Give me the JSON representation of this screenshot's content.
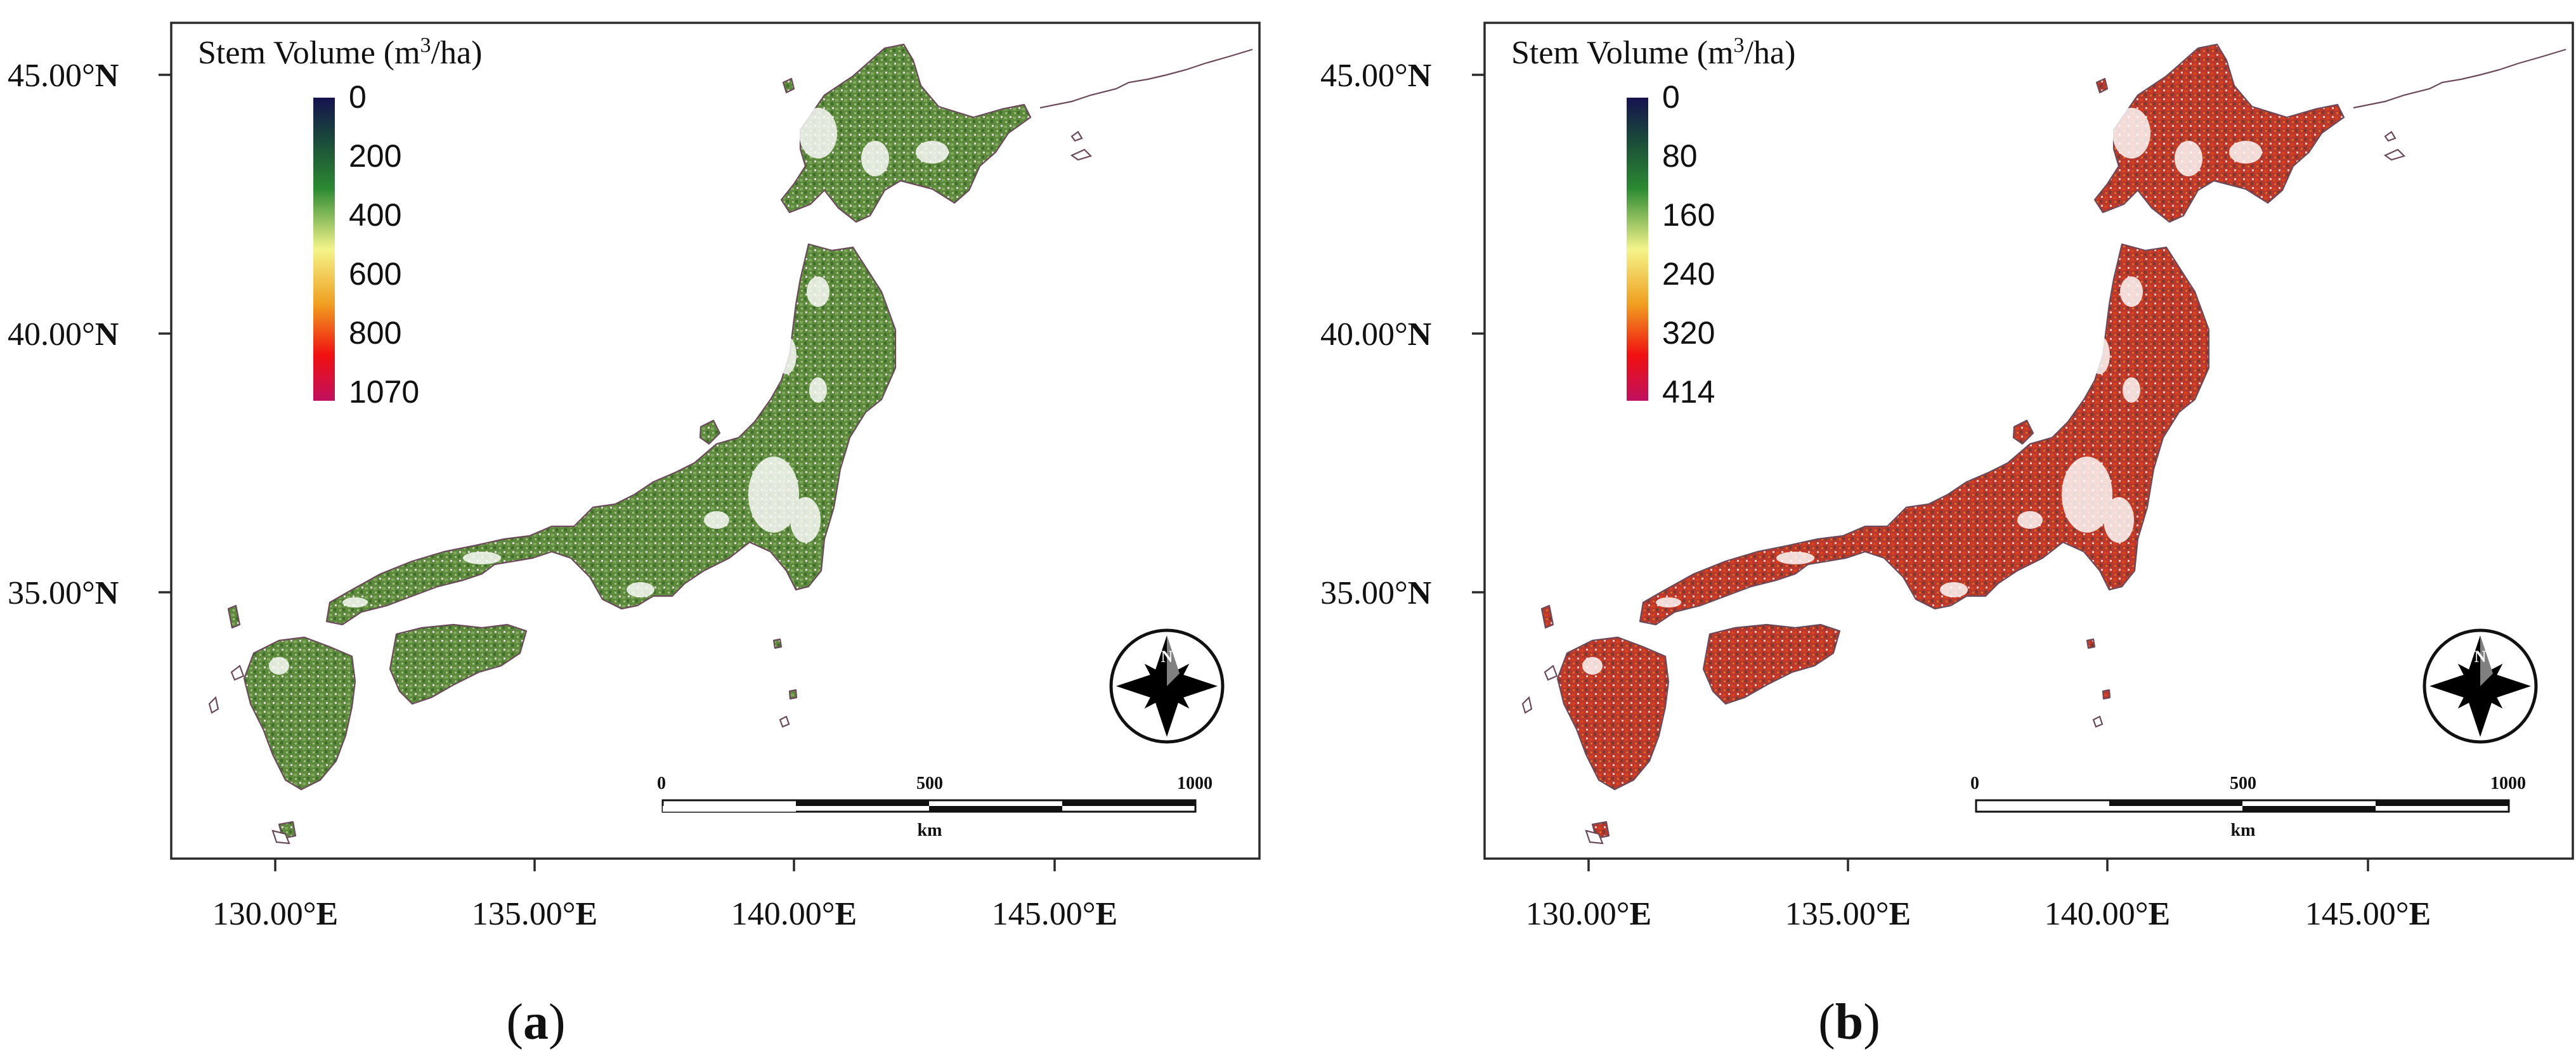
{
  "panels": [
    {
      "id": "a",
      "label_open": "(",
      "label_letter": "a",
      "label_close": ")",
      "legend_title_main": "Stem Volume (m",
      "legend_title_sup": "3",
      "legend_title_end": "/ha)",
      "legend_ticks": [
        "0",
        "200",
        "400",
        "600",
        "800",
        "1070"
      ],
      "color_theme": "green",
      "lat_labels": [
        {
          "value": "45.00°",
          "hemi": "N"
        },
        {
          "value": "40.00°",
          "hemi": "N"
        },
        {
          "value": "35.00°",
          "hemi": "N"
        }
      ],
      "lon_labels": [
        {
          "value": "130.00°",
          "hemi": "E"
        },
        {
          "value": "135.00°",
          "hemi": "E"
        },
        {
          "value": "140.00°",
          "hemi": "E"
        },
        {
          "value": "145.00°",
          "hemi": "E"
        }
      ],
      "scale_ticks": [
        "0",
        "500",
        "1000"
      ],
      "scale_unit": "km",
      "compass_letter": "N"
    },
    {
      "id": "b",
      "label_open": "(",
      "label_letter": "b",
      "label_close": ")",
      "legend_title_main": "Stem Volume (m",
      "legend_title_sup": "3",
      "legend_title_end": "/ha)",
      "legend_ticks": [
        "0",
        "80",
        "160",
        "240",
        "320",
        "414"
      ],
      "color_theme": "red",
      "lat_labels": [
        {
          "value": "45.00°",
          "hemi": "N"
        },
        {
          "value": "40.00°",
          "hemi": "N"
        },
        {
          "value": "35.00°",
          "hemi": "N"
        }
      ],
      "lon_labels": [
        {
          "value": "130.00°",
          "hemi": "E"
        },
        {
          "value": "135.00°",
          "hemi": "E"
        },
        {
          "value": "140.00°",
          "hemi": "E"
        },
        {
          "value": "145.00°",
          "hemi": "E"
        }
      ],
      "scale_ticks": [
        "0",
        "500",
        "1000"
      ],
      "scale_unit": "km",
      "compass_letter": "N"
    }
  ],
  "colors": {
    "colorbar": [
      "#16124f",
      "#1f6a2e",
      "#4aa83a",
      "#f4f48a",
      "#f0a020",
      "#f01010",
      "#c01060"
    ],
    "green_land": "#5e8a3e",
    "green_land_light": "#8fb564",
    "red_land": "#c8322a",
    "red_land_dark": "#8c2a26",
    "outline": "#6a4a5a"
  }
}
